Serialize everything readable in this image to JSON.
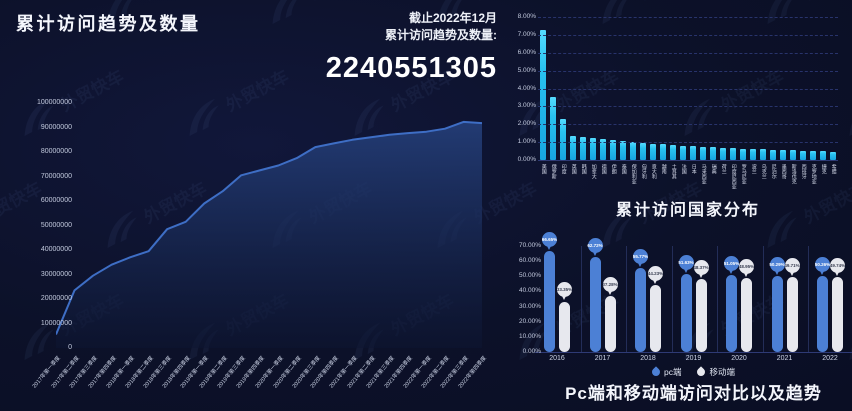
{
  "app": {
    "background": "#0d122b",
    "watermark_text": "外贸快车",
    "accent_cyan": "#29c2f0",
    "accent_blue": "#4c80d5",
    "accent_white": "#e7e8ee"
  },
  "left_panel": {
    "title": "累计访问趋势及数量",
    "summary": {
      "line1": "截止2022年12月",
      "line2": "累计访问趋势及数量:",
      "total": "2240551305"
    }
  },
  "chart_data": [
    {
      "id": "cumulative-trend",
      "type": "area",
      "title": "累计访问趋势及数量",
      "x": [
        "2017年第一季度",
        "2017年第二季度",
        "2017年第三季度",
        "2017年第四季度",
        "2018年第一季度",
        "2018年第二季度",
        "2018年第三季度",
        "2018年第四季度",
        "2019年第一季度",
        "2019年第二季度",
        "2019年第三季度",
        "2019年第四季度",
        "2020年第一季度",
        "2020年第二季度",
        "2020年第三季度",
        "2020年第四季度",
        "2021年第一季度",
        "2021年第二季度",
        "2021年第三季度",
        "2021年第四季度",
        "2022年第一季度",
        "2022年第二季度",
        "2022年第三季度",
        "2022年第四季度"
      ],
      "values": [
        5500000,
        23500000,
        29500000,
        34000000,
        37000000,
        39500000,
        48500000,
        51500000,
        59000000,
        64000000,
        70500000,
        72500000,
        74500000,
        77500000,
        82000000,
        83500000,
        85000000,
        86000000,
        87000000,
        87700000,
        88300000,
        89500000,
        92300000,
        91800000
      ],
      "ylim": [
        0,
        100000000
      ],
      "ytick_labels": [
        "100000000",
        "90000000",
        "80000000",
        "70000000",
        "60000000",
        "50000000",
        "40000000",
        "30000000",
        "20000000",
        "10000000",
        "0"
      ],
      "line_color": "#3e6ec5",
      "grid": false,
      "legend_position": "none"
    },
    {
      "id": "country-distribution",
      "type": "bar",
      "title": "累计访问国家分布",
      "categories": [
        "美国",
        "俄罗斯",
        "印度",
        "英国",
        "韩国",
        "加拿大",
        "德国",
        "伊朗",
        "泰国",
        "保加利亚",
        "匈牙利",
        "意大利",
        "越南",
        "土耳其",
        "法国",
        "日本",
        "马来西亚",
        "瑞典",
        "荷兰",
        "印度尼西亚",
        "罗马尼亚",
        "波兰",
        "乌克兰",
        "尼泊尔",
        "墨西哥",
        "斯洛伐克",
        "西班牙",
        "克罗地亚",
        "捷克",
        "希腊"
      ],
      "values": [
        7.25,
        3.52,
        2.3,
        1.35,
        1.28,
        1.22,
        1.16,
        1.12,
        1.08,
        1.02,
        0.96,
        0.92,
        0.88,
        0.84,
        0.8,
        0.77,
        0.74,
        0.71,
        0.68,
        0.66,
        0.64,
        0.62,
        0.6,
        0.58,
        0.56,
        0.54,
        0.52,
        0.5,
        0.48,
        0.46
      ],
      "ylim": [
        0,
        8
      ],
      "ytick_labels": [
        "8.00%",
        "7.00%",
        "6.00%",
        "5.00%",
        "4.00%",
        "3.00%",
        "2.00%",
        "1.00%",
        "0.00%"
      ],
      "bar_color": "#29c2f0",
      "grid": "dashed",
      "legend_position": "none"
    },
    {
      "id": "pc-mobile-trend",
      "type": "bar",
      "title": "Pc端和移动端访问对比以及趋势",
      "categories": [
        "2016",
        "2017",
        "2018",
        "2019",
        "2020",
        "2021",
        "2022"
      ],
      "series": [
        {
          "name": "pc端",
          "color": "#4c80d5",
          "values": [
            66.65,
            62.72,
            55.77,
            51.63,
            51.05,
            50.29,
            50.26
          ]
        },
        {
          "name": "移动端",
          "color": "#e7e8ee",
          "values": [
            33.35,
            37.28,
            44.23,
            48.37,
            48.95,
            49.71,
            49.74
          ]
        }
      ],
      "ylim": [
        0,
        70
      ],
      "ytick_labels": [
        "70.00%",
        "60.00%",
        "50.00%",
        "40.00%",
        "30.00%",
        "20.00%",
        "10.00%",
        "0.00%"
      ],
      "grid": false,
      "legend_position": "bottom",
      "legend": [
        "pc端",
        "移动端"
      ]
    }
  ]
}
